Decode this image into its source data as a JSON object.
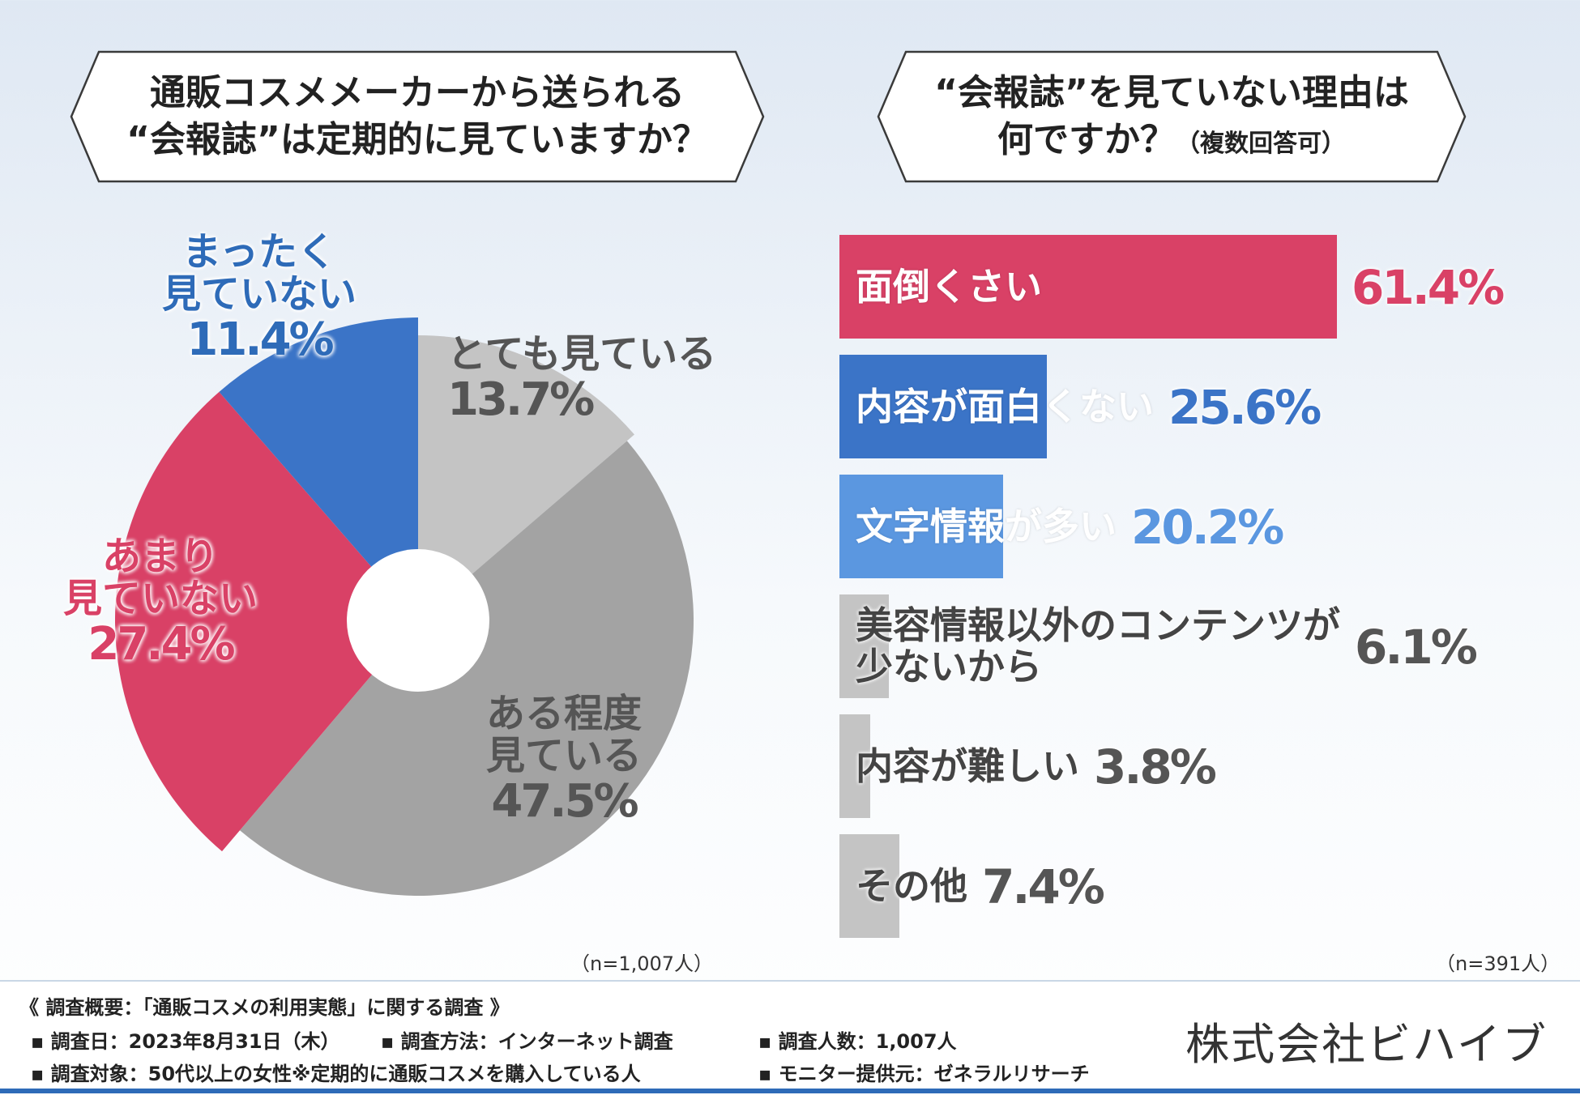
{
  "left_question": {
    "line1": "通販コスメメーカーから送られる",
    "line2": "“会報誌”は定期的に見ていますか？"
  },
  "right_question": {
    "line1": "“会報誌”を見ていない理由は",
    "line2": "何ですか？",
    "line2_small": "（複数回答可）"
  },
  "pie_labels": [
    {
      "text1": "とても見ている",
      "text2": "",
      "pct": "13.7%"
    },
    {
      "text1": "ある程度",
      "text2": "見ている",
      "pct": "47.5%"
    },
    {
      "text1": "あまり",
      "text2": "見ていない",
      "pct": "27.4%"
    },
    {
      "text1": "まったく",
      "text2": "見ていない",
      "pct": "11.4%"
    }
  ],
  "left_n": "（n=1,007人）",
  "right_n": "（n=391人）",
  "bar_labels": [
    {
      "label": "面倒くさい",
      "pct": "61.4%"
    },
    {
      "label": "内容が面白くない",
      "pct": "25.6%"
    },
    {
      "label": "文字情報が多い",
      "pct": "20.2%"
    },
    {
      "label": "美容情報以外のコンテンツが",
      "label2": "少ないから",
      "pct": "6.1%"
    },
    {
      "label": "内容が難しい",
      "pct": "3.8%"
    },
    {
      "label": "その他",
      "pct": "7.4%"
    }
  ],
  "chart_data": [
    {
      "type": "pie",
      "title": "通販コスメメーカーから送られる“会報誌”は定期的に見ていますか？",
      "categories": [
        "とても見ている",
        "ある程度見ている",
        "あまり見ていない",
        "まったく見ていない"
      ],
      "values": [
        13.7,
        47.5,
        27.4,
        11.4
      ],
      "colors": [
        "#c4c4c4",
        "#a3a3a3",
        "#d94166",
        "#3b74c7"
      ],
      "unit": "%",
      "n": "n=1,007人"
    },
    {
      "type": "bar",
      "orientation": "horizontal",
      "title": "“会報誌”を見ていない理由は何ですか？（複数回答可）",
      "categories": [
        "面倒くさい",
        "内容が面白くない",
        "文字情報が多い",
        "美容情報以外のコンテンツが少ないから",
        "内容が難しい",
        "その他"
      ],
      "values": [
        61.4,
        25.6,
        20.2,
        6.1,
        3.8,
        7.4
      ],
      "colors": [
        "#d94166",
        "#3b74c7",
        "#5b97e0",
        "#c4c4c4",
        "#c4c4c4",
        "#c4c4c4"
      ],
      "label_colors": [
        "#ffffff",
        "#ffffff",
        "#ffffff",
        "#444444",
        "#444444",
        "#444444"
      ],
      "pct_colors": [
        "#d94166",
        "#3b74c7",
        "#5b97e0",
        "#555555",
        "#555555",
        "#555555"
      ],
      "unit": "%",
      "xlim": [
        0,
        61.4
      ],
      "n": "n=391人"
    }
  ],
  "footer": {
    "summary": "《 調査概要：「通販コスメの利用実態」に関する調査 》",
    "date": "▪ 調査日：2023年8月31日（木）",
    "method": "▪ 調査方法：インターネット調査",
    "count": "▪ 調査人数：1,007人",
    "target": "▪ 調査対象：50代以上の女性※定期的に通販コスメを購入している人",
    "provider": "▪ モニター提供元：ゼネラルリサーチ",
    "company": "株式会社ビハイブ"
  }
}
